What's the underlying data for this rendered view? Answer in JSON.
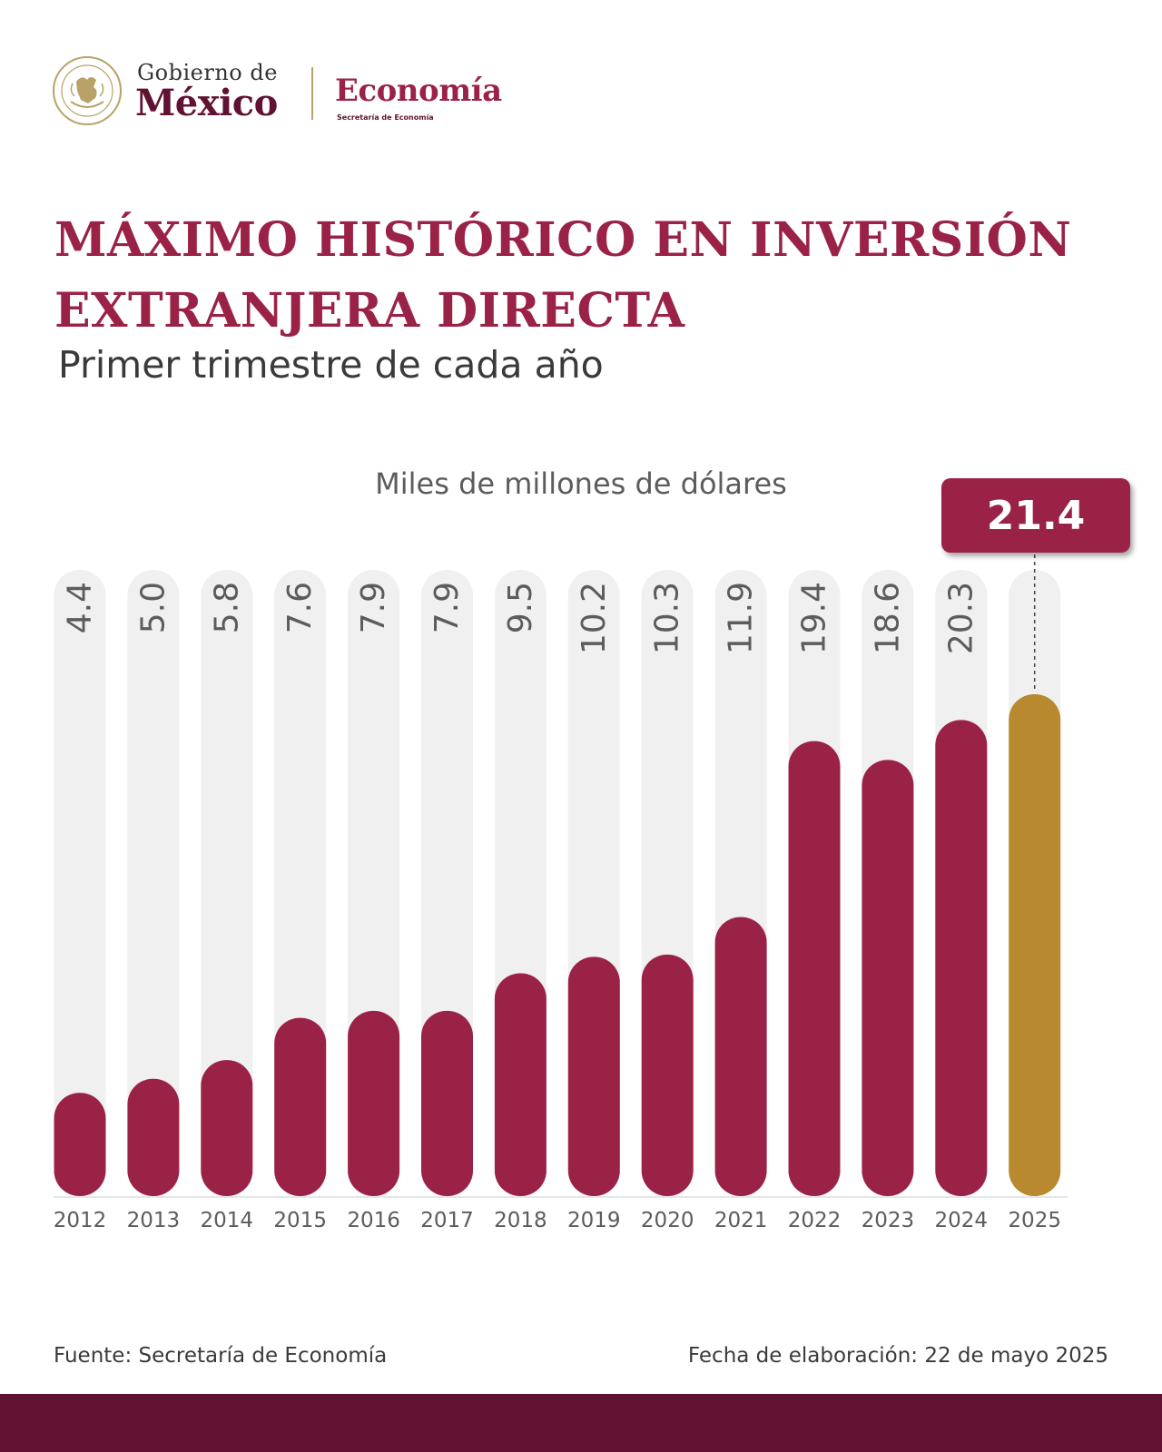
{
  "header": {
    "gov_line1": "Gobierno de",
    "gov_line2": "México",
    "secretariat": "Economía",
    "secretariat_sub": "Secretaría de Economía",
    "seal_text": "ESTADOS UNIDOS MEXICANOS"
  },
  "colors": {
    "primary": "#9b2247",
    "dark": "#611232",
    "gold": "#b8892f",
    "track": "#f0f0f0",
    "text_gray": "#5c5c5c"
  },
  "chart_data": {
    "type": "bar",
    "title": "MÁXIMO HISTÓRICO EN INVERSIÓN EXTRANJERA DIRECTA",
    "subtitle": "Primer trimestre de cada año",
    "ylabel": "Miles de millones de dólares",
    "categories": [
      "2012",
      "2013",
      "2014",
      "2015",
      "2016",
      "2017",
      "2018",
      "2019",
      "2020",
      "2021",
      "2022",
      "2023",
      "2024",
      "2025"
    ],
    "values": [
      4.4,
      5.0,
      5.8,
      7.6,
      7.9,
      7.9,
      9.5,
      10.2,
      10.3,
      11.9,
      19.4,
      18.6,
      20.3,
      21.4
    ],
    "value_labels": [
      "4.4",
      "5.0",
      "5.8",
      "7.6",
      "7.9",
      "7.9",
      "9.5",
      "10.2",
      "10.3",
      "11.9",
      "19.4",
      "18.6",
      "20.3",
      "21.4"
    ],
    "highlight_index": 13,
    "ylim": [
      0,
      26.7
    ],
    "grid": false
  },
  "callout": {
    "value": "21.4"
  },
  "footer": {
    "source": "Fuente: Secretaría de Economía",
    "date": "Fecha de elaboración: 22 de mayo 2025"
  }
}
